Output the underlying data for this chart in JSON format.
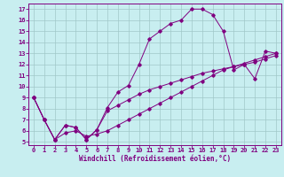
{
  "xlabel": "Windchill (Refroidissement éolien,°C)",
  "bg_color": "#c8eef0",
  "line_color": "#800080",
  "grid_color": "#a0c8c8",
  "xlim": [
    -0.5,
    23.5
  ],
  "ylim": [
    4.7,
    17.5
  ],
  "xticks": [
    0,
    1,
    2,
    3,
    4,
    5,
    6,
    7,
    8,
    9,
    10,
    11,
    12,
    13,
    14,
    15,
    16,
    17,
    18,
    19,
    20,
    21,
    22,
    23
  ],
  "yticks": [
    5,
    6,
    7,
    8,
    9,
    10,
    11,
    12,
    13,
    14,
    15,
    16,
    17
  ],
  "line1_x": [
    0,
    1,
    2,
    3,
    4,
    5,
    6,
    7,
    8,
    9,
    10,
    11,
    12,
    13,
    14,
    15,
    16,
    17,
    18,
    19,
    20,
    21,
    22,
    23
  ],
  "line1_y": [
    9,
    7,
    5.2,
    6.5,
    6.3,
    5.2,
    6.1,
    8.1,
    9.5,
    10.1,
    12.0,
    14.3,
    15.0,
    15.7,
    16.0,
    17.0,
    17.0,
    16.5,
    15.0,
    11.5,
    12.0,
    10.7,
    13.2,
    13.0
  ],
  "line2_x": [
    0,
    1,
    2,
    3,
    4,
    5,
    6,
    7,
    8,
    9,
    10,
    11,
    12,
    13,
    14,
    15,
    16,
    17,
    18,
    19,
    20,
    21,
    22,
    23
  ],
  "line2_y": [
    9,
    7,
    5.2,
    6.5,
    6.3,
    5.2,
    6.1,
    7.8,
    8.3,
    8.8,
    9.3,
    9.7,
    10.0,
    10.3,
    10.6,
    10.9,
    11.2,
    11.4,
    11.6,
    11.8,
    12.0,
    12.2,
    12.5,
    12.8
  ],
  "line3_x": [
    0,
    1,
    2,
    3,
    4,
    5,
    6,
    7,
    8,
    9,
    10,
    11,
    12,
    13,
    14,
    15,
    16,
    17,
    18,
    19,
    20,
    21,
    22,
    23
  ],
  "line3_y": [
    9,
    7,
    5.2,
    5.8,
    6.0,
    5.5,
    5.7,
    6.0,
    6.5,
    7.0,
    7.5,
    8.0,
    8.5,
    9.0,
    9.5,
    10.0,
    10.5,
    11.0,
    11.5,
    11.8,
    12.1,
    12.4,
    12.7,
    13.0
  ]
}
